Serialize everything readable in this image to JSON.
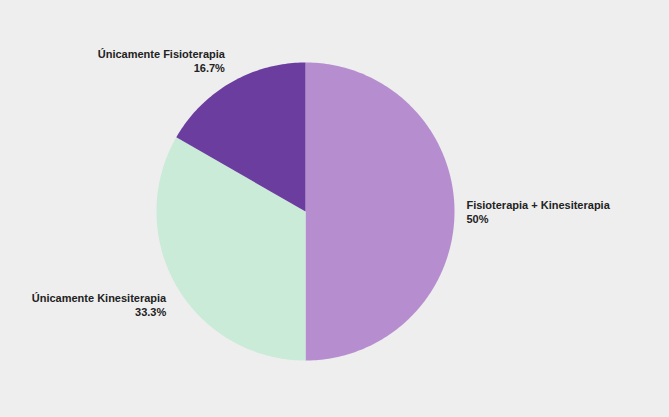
{
  "chart_data": {
    "type": "pie",
    "categories": [
      "Fisioterapia + Kinesiterapia",
      "Únicamente Kinesiterapia",
      "Únicamente Fisioterapia"
    ],
    "values": [
      50,
      33.3,
      16.7
    ],
    "value_labels": [
      "50%",
      "33.3%",
      "16.7%"
    ],
    "colors": [
      "#b68ed0",
      "#c9ebd7",
      "#6a3d9f"
    ],
    "data_labels": true
  }
}
